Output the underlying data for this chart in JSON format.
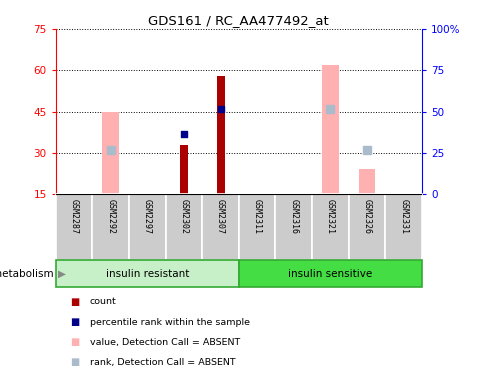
{
  "title": "GDS161 / RC_AA477492_at",
  "samples": [
    "GSM2287",
    "GSM2292",
    "GSM2297",
    "GSM2302",
    "GSM2307",
    "GSM2311",
    "GSM2316",
    "GSM2321",
    "GSM2326",
    "GSM2331"
  ],
  "ylim_left": [
    15,
    75
  ],
  "ylim_right": [
    0,
    100
  ],
  "yticks_left": [
    15,
    30,
    45,
    60,
    75
  ],
  "yticks_right": [
    0,
    25,
    50,
    75,
    100
  ],
  "ytick_labels_left": [
    "15",
    "30",
    "45",
    "60",
    "75"
  ],
  "ytick_labels_right": [
    "0",
    "25",
    "50",
    "75",
    "100%"
  ],
  "red_bars": {
    "GSM2302": 33,
    "GSM2307": 58
  },
  "blue_squares": {
    "GSM2302": 37,
    "GSM2307": 46
  },
  "pink_bars": {
    "GSM2292": 45,
    "GSM2321": 62,
    "GSM2326": 24
  },
  "light_blue_squares": {
    "GSM2292": 31,
    "GSM2321": 46,
    "GSM2326": 31
  },
  "group1_count": 5,
  "group2_count": 5,
  "group1_label": "insulin resistant",
  "group2_label": "insulin sensitive",
  "group_label": "metabolism",
  "group1_color": "#c8f0c8",
  "group2_color": "#44dd44",
  "red_color": "#aa0000",
  "pink_color": "#ffb0b0",
  "blue_color": "#000088",
  "light_blue_color": "#aabbcc",
  "legend_items": [
    "count",
    "percentile rank within the sample",
    "value, Detection Call = ABSENT",
    "rank, Detection Call = ABSENT"
  ],
  "legend_colors": [
    "#aa0000",
    "#000088",
    "#ffb0b0",
    "#aabbcc"
  ]
}
